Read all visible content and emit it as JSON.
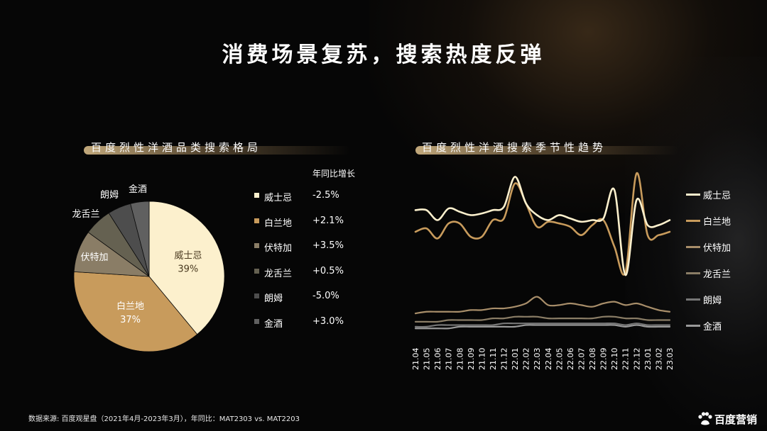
{
  "title": "消费场景复苏，搜索热度反弹",
  "left_section": {
    "title": "百度烈性洋酒品类搜索格局",
    "growth_header": "年同比增长",
    "categories": [
      {
        "name": "威士忌",
        "growth": "-2.5%",
        "color": "#fcf0cd"
      },
      {
        "name": "白兰地",
        "growth": "+2.1%",
        "color": "#c89b5c"
      },
      {
        "name": "伏特加",
        "growth": "+3.5%",
        "color": "#8a7d66"
      },
      {
        "name": "龙舌兰",
        "growth": "+0.5%",
        "color": "#656151"
      },
      {
        "name": "朗姆",
        "growth": "-5.0%",
        "color": "#4d4d4d"
      },
      {
        "name": "金酒",
        "growth": "+3.0%",
        "color": "#606060"
      }
    ]
  },
  "right_section": {
    "title": "百度烈性洋酒搜索季节性趋势"
  },
  "footer": {
    "source": "数据来源: 百度观星盘（2021年4月-2023年3月），年同比：MAT2303 vs. MAT2203",
    "brand": "百度营销"
  },
  "chart_data": [
    {
      "type": "pie",
      "title": "百度烈性洋酒品类搜索格局",
      "categories": [
        "威士忌",
        "白兰地",
        "伏特加",
        "龙舌兰",
        "朗姆",
        "金酒"
      ],
      "values": [
        39,
        37,
        9,
        6,
        5,
        4
      ],
      "labels": [
        "39%",
        "37%",
        "",
        "",
        "",
        ""
      ],
      "colors": [
        "#fcf0cd",
        "#c89b5c",
        "#8a7d66",
        "#656151",
        "#4d4d4d",
        "#606060"
      ]
    },
    {
      "type": "line",
      "title": "百度烈性洋酒搜索季节性趋势",
      "legend_position": "right",
      "categories": [
        "21.04",
        "21.05",
        "21.06",
        "21.07",
        "21.08",
        "21.09",
        "21.10",
        "21.11",
        "21.12",
        "22.01",
        "22.02",
        "22.03",
        "22.04",
        "22.05",
        "22.06",
        "22.07",
        "22.08",
        "22.09",
        "22.10",
        "22.11",
        "22.12",
        "23.01",
        "23.02",
        "23.03"
      ],
      "ylim": [
        0,
        100
      ],
      "series": [
        {
          "name": "威士忌",
          "color": "#fcf0cd",
          "values": [
            76,
            76,
            70,
            77,
            75,
            73,
            74,
            76,
            78,
            96,
            80,
            73,
            70,
            73,
            71,
            69,
            70,
            71,
            88,
            37,
            82,
            67,
            67,
            70
          ]
        },
        {
          "name": "白兰地",
          "color": "#c89b5c",
          "values": [
            63,
            65,
            59,
            68,
            68,
            60,
            60,
            70,
            71,
            92,
            80,
            66,
            69,
            68,
            66,
            61,
            67,
            70,
            54,
            39,
            98,
            61,
            61,
            63
          ]
        },
        {
          "name": "伏特加",
          "color": "#a88e6a",
          "values": [
            14,
            15,
            15,
            15,
            15,
            16,
            16,
            17,
            17,
            18,
            20,
            24,
            19,
            19,
            20,
            19,
            18,
            20,
            21,
            19,
            20,
            18,
            16,
            15
          ]
        },
        {
          "name": "龙舌兰",
          "color": "#8a7d66",
          "values": [
            9,
            9,
            9,
            10,
            10,
            10,
            10,
            11,
            11,
            12,
            12,
            12,
            11,
            11,
            11,
            11,
            11,
            12,
            12,
            11,
            11,
            10,
            10,
            10
          ]
        },
        {
          "name": "朗姆",
          "color": "#777777",
          "values": [
            6,
            6,
            7,
            7,
            7,
            7,
            7,
            7,
            8,
            8,
            8,
            8,
            8,
            8,
            8,
            8,
            8,
            8,
            8,
            7,
            8,
            7,
            7,
            7
          ]
        },
        {
          "name": "金酒",
          "color": "#999999",
          "values": [
            5,
            5,
            5,
            5,
            6,
            6,
            6,
            6,
            6,
            6,
            7,
            7,
            7,
            7,
            7,
            7,
            7,
            7,
            7,
            6,
            7,
            6,
            6,
            6
          ]
        }
      ]
    }
  ]
}
